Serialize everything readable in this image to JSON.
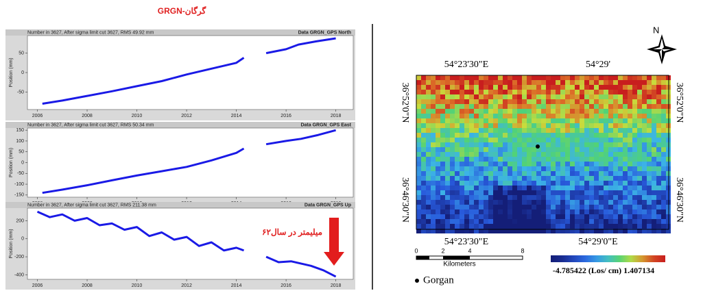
{
  "title": "GRGN-گرگان",
  "chart_data": [
    {
      "type": "line",
      "header_left": "Number in  3627, After sigma limit cut  3627, RMS  49.92 mm",
      "header_right": "Data GRGN_GPS North",
      "ylabel": "Position (mm)",
      "x": [
        2006.2,
        2007,
        2008,
        2009,
        2010,
        2011,
        2012,
        2013,
        2014,
        2014.3,
        2014.7,
        2015.2,
        2016,
        2016.5,
        2017.2,
        2018
      ],
      "values": [
        -80,
        -72,
        -60,
        -48,
        -35,
        -22,
        -5,
        10,
        25,
        38,
        null,
        50,
        60,
        72,
        80,
        88
      ],
      "color": "#1a1ae6",
      "xlim": [
        2005.6,
        2018.7
      ],
      "ylim": [
        -95,
        95
      ],
      "xticks": [
        2006,
        2008,
        2010,
        2012,
        2014,
        2016,
        2018
      ],
      "yticks": [
        50,
        0,
        -50
      ]
    },
    {
      "type": "line",
      "header_left": "Number in  3627, After sigma limit cut  3627, RMS  50.34 mm",
      "header_right": "Data GRGN_GPS East",
      "ylabel": "Position (mm)",
      "x": [
        2006.2,
        2007,
        2008,
        2009,
        2010,
        2011,
        2012,
        2013,
        2014,
        2014.3,
        2014.7,
        2015.2,
        2016,
        2016.6,
        2017.3,
        2018
      ],
      "values": [
        -140,
        -125,
        -105,
        -82,
        -60,
        -40,
        -20,
        10,
        45,
        65,
        null,
        85,
        100,
        110,
        128,
        150
      ],
      "color": "#1a1ae6",
      "xlim": [
        2005.6,
        2018.7
      ],
      "ylim": [
        -160,
        160
      ],
      "xticks": [
        2006,
        2008,
        2010,
        2012,
        2014,
        2016,
        2018
      ],
      "yticks": [
        150,
        100,
        50,
        0,
        -50,
        -100,
        -150
      ]
    },
    {
      "type": "line",
      "header_left": "Number in  3627, After sigma limit cut  3627, RMS  211.38 mm",
      "header_right": "Data GRGN_GPS Up",
      "ylabel": "Position (mm)",
      "x": [
        2006,
        2006.5,
        2007,
        2007.5,
        2008,
        2008.5,
        2009,
        2009.5,
        2010,
        2010.5,
        2011,
        2011.5,
        2012,
        2012.5,
        2013,
        2013.5,
        2014,
        2014.3,
        2014.7,
        2015.2,
        2015.7,
        2016.2,
        2017,
        2017.5,
        2018
      ],
      "values": [
        300,
        240,
        270,
        200,
        230,
        150,
        170,
        100,
        130,
        30,
        70,
        -10,
        20,
        -80,
        -40,
        -130,
        -100,
        -130,
        null,
        -200,
        -260,
        -250,
        -300,
        -350,
        -420
      ],
      "color": "#1a1ae6",
      "xlim": [
        2005.6,
        2018.7
      ],
      "ylim": [
        -450,
        340
      ],
      "xticks": [
        2006,
        2008,
        2010,
        2012,
        2014,
        2016,
        2018
      ],
      "yticks": [
        200,
        0,
        -200,
        -400
      ],
      "annotation": "۶۲میلیمتر در سال"
    }
  ],
  "map": {
    "top_lon": [
      "54°23'30\"E",
      "54°29'"
    ],
    "bottom_lon": [
      "54°23'30\"E",
      "54°29'0\"E"
    ],
    "lat": [
      "36°52'0\"N",
      "36°46'30\"N"
    ],
    "north": "N",
    "scale_ticks": [
      "0",
      "2",
      "4",
      "8"
    ],
    "scale_unit": "Kilometers",
    "colorbar_label": "-4.785422 (Los/ cm) 1.407134",
    "legend_point": "Gorgan"
  }
}
